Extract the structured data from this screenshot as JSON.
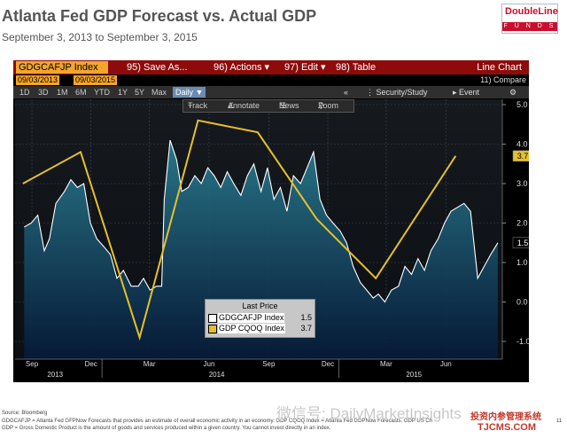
{
  "header": {
    "title": "Atlanta Fed GDP Forecast vs. Actual GDP",
    "subtitle": "September 3, 2013 to September 3, 2015"
  },
  "logo": {
    "brand": "DoubleLine",
    "tag": "F U N D S"
  },
  "terminal": {
    "ticker": "GDGCAFJP Index",
    "menu": [
      {
        "num": "95",
        "label": "Save As...",
        "caret": ""
      },
      {
        "num": "96",
        "label": "Actions",
        "caret": "▾"
      },
      {
        "num": "97",
        "label": "Edit",
        "caret": "▾"
      },
      {
        "num": "98",
        "label": "Table",
        "caret": ""
      }
    ],
    "chart_type_label": "Line Chart",
    "start_date": "09/03/2013",
    "end_date": "09/03/2015",
    "compare": "11) Compare",
    "periods": [
      "1D",
      "3D",
      "1M",
      "6M",
      "YTD",
      "1Y",
      "5Y",
      "Max"
    ],
    "frequency": "Daily ▼",
    "right_tools": [
      "«",
      "Security/Study",
      "Event",
      "⚙"
    ],
    "tools": [
      "Track",
      "Annotate",
      "News",
      "Zoom"
    ]
  },
  "legend": {
    "header": "Last Price",
    "items": [
      {
        "name": "GDGCAFJP Index",
        "value": "1.5",
        "color": "#ffffff"
      },
      {
        "name": "GDP CQOQ Index",
        "value": "3.7",
        "color": "#e6c02a"
      }
    ]
  },
  "chart_data": {
    "type": "line",
    "y_ticks": [
      "5.0",
      "4.0",
      "3.0",
      "2.0",
      "1.0",
      "0.0",
      "-1.0"
    ],
    "ylim": [
      -1.0,
      5.0
    ],
    "x_month_ticks": [
      "Sep",
      "Dec",
      "Mar",
      "Jun",
      "Sep",
      "Dec",
      "Mar",
      "Jun"
    ],
    "x_year_labels": [
      "2013",
      "2014",
      "2015"
    ],
    "grid": true,
    "last_value_labels": [
      "1.5",
      "3.7"
    ],
    "series": [
      {
        "name": "GDP CQOQ Index",
        "color": "#e6c02a",
        "x": [
          "2013-09-01",
          "2013-11-29",
          "2014-02-28",
          "2014-05-29",
          "2014-08-29",
          "2014-11-28",
          "2015-02-27",
          "2015-06-30"
        ],
        "values": [
          3.0,
          3.8,
          -0.9,
          4.6,
          4.3,
          2.1,
          0.6,
          3.7
        ]
      },
      {
        "name": "GDGCAFJP Index",
        "color": "#ffffff",
        "x": [
          "2013-09-03",
          "2013-09-14",
          "2013-09-24",
          "2013-10-04",
          "2013-10-12",
          "2013-10-22",
          "2013-11-04",
          "2013-11-14",
          "2013-11-24",
          "2013-12-04",
          "2013-12-14",
          "2013-12-24",
          "2014-01-04",
          "2014-01-14",
          "2014-01-24",
          "2014-02-03",
          "2014-02-15",
          "2014-02-26",
          "2014-03-06",
          "2014-03-16",
          "2014-03-26",
          "2014-04-03",
          "2014-04-07",
          "2014-04-16",
          "2014-04-26",
          "2014-05-04",
          "2014-05-14",
          "2014-05-24",
          "2014-06-03",
          "2014-06-13",
          "2014-06-23",
          "2014-07-03",
          "2014-07-13",
          "2014-07-23",
          "2014-08-03",
          "2014-08-13",
          "2014-08-23",
          "2014-09-03",
          "2014-09-13",
          "2014-09-23",
          "2014-10-03",
          "2014-10-13",
          "2014-10-23",
          "2014-11-03",
          "2014-11-13",
          "2014-11-23",
          "2014-12-03",
          "2014-12-13",
          "2014-12-23",
          "2015-01-03",
          "2015-01-13",
          "2015-01-23",
          "2015-02-03",
          "2015-02-13",
          "2015-02-23",
          "2015-03-03",
          "2015-03-13",
          "2015-03-23",
          "2015-04-03",
          "2015-04-13",
          "2015-04-23",
          "2015-05-03",
          "2015-05-13",
          "2015-05-23",
          "2015-06-03",
          "2015-06-13",
          "2015-06-23",
          "2015-07-03",
          "2015-07-13",
          "2015-07-23",
          "2015-08-03",
          "2015-08-13",
          "2015-08-23",
          "2015-09-03"
        ],
        "values": [
          1.9,
          2.0,
          2.2,
          1.3,
          1.6,
          2.5,
          2.8,
          3.1,
          2.9,
          3.0,
          2.0,
          1.6,
          1.4,
          1.2,
          0.6,
          0.8,
          0.4,
          0.4,
          0.6,
          0.3,
          0.4,
          0.4,
          2.6,
          4.1,
          3.6,
          2.8,
          2.9,
          3.2,
          3.0,
          3.4,
          3.2,
          2.9,
          3.3,
          3.0,
          2.7,
          3.2,
          3.5,
          2.8,
          3.4,
          2.6,
          2.9,
          2.3,
          3.2,
          3.0,
          3.4,
          3.8,
          2.6,
          2.2,
          2.0,
          1.8,
          1.5,
          0.9,
          0.5,
          0.3,
          0.1,
          0.2,
          0.0,
          0.3,
          0.4,
          0.9,
          0.7,
          1.1,
          0.8,
          1.3,
          1.6,
          2.0,
          2.3,
          2.4,
          2.5,
          2.3,
          0.6,
          0.9,
          1.2,
          1.5
        ]
      }
    ]
  },
  "footer": {
    "source": "Source: Bloomberg",
    "line1": "GDGCAFJP = Atlanta Fed GFPNow Forecasts that provides an estimate of overall economic activity in an economy. GDP CQOQ Index = Atlanta Fed GDPNow Forecasts. GDP US Ch",
    "line2": "GDP = Gross Domestic Product is the amount of goods and services produced within a given country. You cannot invest directly in an index.",
    "page_num": "11"
  },
  "watermark": {
    "text": "微信号: DailyMarketInsights",
    "brand_cn": "投资内参管理系统",
    "brand_en": "TJCMS.COM"
  }
}
